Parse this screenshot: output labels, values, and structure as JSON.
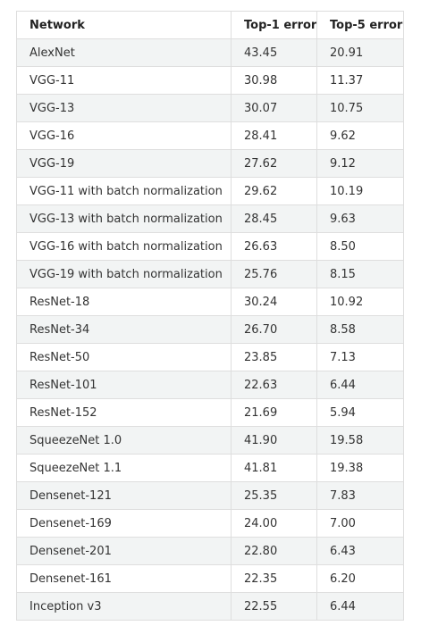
{
  "table": {
    "headers": [
      "Network",
      "Top-1 error",
      "Top-5 error"
    ],
    "rows": [
      [
        "AlexNet",
        "43.45",
        "20.91"
      ],
      [
        "VGG-11",
        "30.98",
        "11.37"
      ],
      [
        "VGG-13",
        "30.07",
        "10.75"
      ],
      [
        "VGG-16",
        "28.41",
        "9.62"
      ],
      [
        "VGG-19",
        "27.62",
        "9.12"
      ],
      [
        "VGG-11 with batch normalization",
        "29.62",
        "10.19"
      ],
      [
        "VGG-13 with batch normalization",
        "28.45",
        "9.63"
      ],
      [
        "VGG-16 with batch normalization",
        "26.63",
        "8.50"
      ],
      [
        "VGG-19 with batch normalization",
        "25.76",
        "8.15"
      ],
      [
        "ResNet-18",
        "30.24",
        "10.92"
      ],
      [
        "ResNet-34",
        "26.70",
        "8.58"
      ],
      [
        "ResNet-50",
        "23.85",
        "7.13"
      ],
      [
        "ResNet-101",
        "22.63",
        "6.44"
      ],
      [
        "ResNet-152",
        "21.69",
        "5.94"
      ],
      [
        "SqueezeNet 1.0",
        "41.90",
        "19.58"
      ],
      [
        "SqueezeNet 1.1",
        "41.81",
        "19.38"
      ],
      [
        "Densenet-121",
        "25.35",
        "7.83"
      ],
      [
        "Densenet-169",
        "24.00",
        "7.00"
      ],
      [
        "Densenet-201",
        "22.80",
        "6.43"
      ],
      [
        "Densenet-161",
        "22.35",
        "6.20"
      ],
      [
        "Inception v3",
        "22.55",
        "6.44"
      ]
    ]
  }
}
